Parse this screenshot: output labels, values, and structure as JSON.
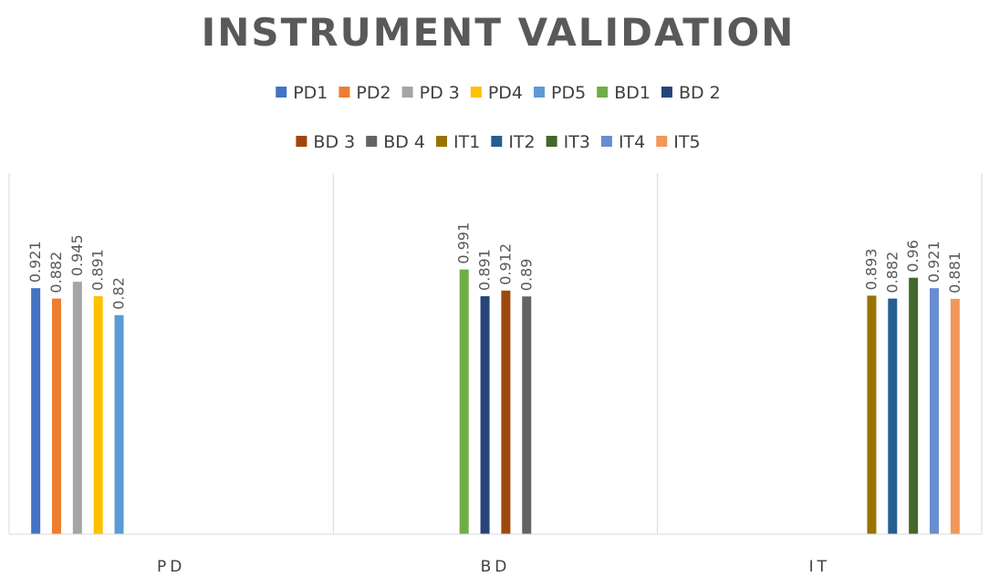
{
  "chart_data": {
    "type": "bar",
    "title": "INSTRUMENT VALIDATION",
    "xlabel": "",
    "ylabel": "",
    "categories": [
      "PD",
      "BD",
      "IT"
    ],
    "ylim": [
      0,
      2
    ],
    "grid": false,
    "legend_position": "top",
    "series": [
      {
        "name": "PD1",
        "color": "#4472C4",
        "values": [
          0.921,
          null,
          null
        ]
      },
      {
        "name": "PD2",
        "color": "#ED7D31",
        "values": [
          0.882,
          null,
          null
        ]
      },
      {
        "name": "PD 3",
        "color": "#A5A5A5",
        "values": [
          0.945,
          null,
          null
        ]
      },
      {
        "name": "PD4",
        "color": "#FFC000",
        "values": [
          0.891,
          null,
          null
        ]
      },
      {
        "name": "PD5",
        "color": "#5B9BD5",
        "values": [
          0.82,
          null,
          null
        ]
      },
      {
        "name": "BD1",
        "color": "#70AD47",
        "values": [
          null,
          0.991,
          null
        ]
      },
      {
        "name": "BD 2",
        "color": "#264478",
        "values": [
          null,
          0.891,
          null
        ]
      },
      {
        "name": "BD 3",
        "color": "#9E480E",
        "values": [
          null,
          0.912,
          null
        ]
      },
      {
        "name": "BD 4",
        "color": "#636363",
        "values": [
          null,
          0.89,
          null
        ]
      },
      {
        "name": "IT1",
        "color": "#997300",
        "values": [
          null,
          null,
          0.893
        ]
      },
      {
        "name": "IT2",
        "color": "#255E91",
        "values": [
          null,
          null,
          0.882
        ]
      },
      {
        "name": "IT3",
        "color": "#43682B",
        "values": [
          null,
          null,
          0.96
        ]
      },
      {
        "name": "IT4",
        "color": "#698ED0",
        "values": [
          null,
          null,
          0.921
        ]
      },
      {
        "name": "IT5",
        "color": "#F1975A",
        "values": [
          null,
          null,
          0.881
        ]
      }
    ],
    "data_labels": true
  }
}
